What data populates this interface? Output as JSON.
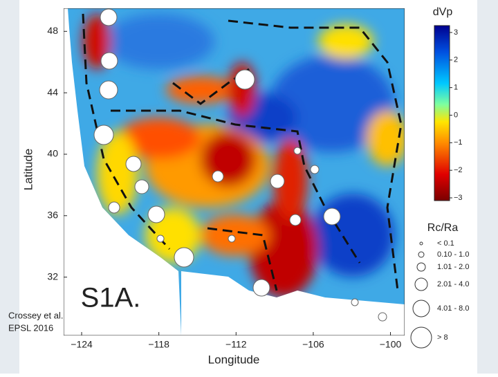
{
  "map": {
    "x_label": "Longitude",
    "y_label": "Latitude",
    "xlim": [
      -125.4,
      -98.9
    ],
    "ylim": [
      28.2,
      49.5
    ],
    "xticks": [
      {
        "value": -124,
        "label": "−124"
      },
      {
        "value": -118,
        "label": "−118"
      },
      {
        "value": -112,
        "label": "−112"
      },
      {
        "value": -106,
        "label": "−106"
      },
      {
        "value": -100,
        "label": "−100"
      }
    ],
    "yticks": [
      32,
      36,
      40,
      44,
      48
    ],
    "panel_label": "S1A.",
    "credit": [
      "Crossey et al.",
      "EPSL 2016"
    ]
  },
  "colorbar": {
    "title": "dVp",
    "clim": [
      -3.1,
      3.25
    ],
    "ticks": [
      {
        "value": -3,
        "label": "−3"
      },
      {
        "value": -2,
        "label": "−2"
      },
      {
        "value": -1,
        "label": "−1"
      },
      0,
      1,
      2,
      3
    ]
  },
  "legend": {
    "title": "Rc/Ra",
    "entries": [
      "< 0.1",
      "0.10 - 1.0",
      "1.01 - 2.0",
      "2.01 - 4.0",
      "4.01 - 8.0",
      "> 8"
    ]
  }
}
